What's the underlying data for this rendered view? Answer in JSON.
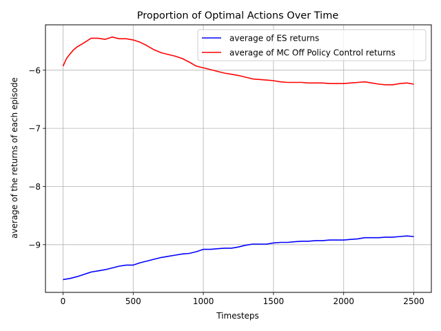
{
  "chart_data": {
    "type": "line",
    "title": "Proportion of Optimal Actions Over Time",
    "xlabel": "Timesteps",
    "ylabel": "average of the returns of each episode",
    "xlim": [
      -125,
      2625
    ],
    "ylim": [
      -9.82,
      -5.22
    ],
    "xticks": [
      0,
      500,
      1000,
      1500,
      2000,
      2500
    ],
    "yticks": [
      -9,
      -8,
      -7,
      -6
    ],
    "xtick_labels": [
      "0",
      "500",
      "1000",
      "1500",
      "2000",
      "2500"
    ],
    "ytick_labels": [
      "−9",
      "−8",
      "−7",
      "−6"
    ],
    "grid": true,
    "legend": "top-right",
    "series": [
      {
        "name": "average of ES returns",
        "color": "#0000ff",
        "x": [
          0,
          50,
          100,
          150,
          200,
          250,
          300,
          350,
          400,
          450,
          500,
          550,
          600,
          650,
          700,
          750,
          800,
          850,
          900,
          950,
          1000,
          1050,
          1100,
          1150,
          1200,
          1250,
          1300,
          1350,
          1400,
          1450,
          1500,
          1550,
          1600,
          1650,
          1700,
          1750,
          1800,
          1850,
          1900,
          1950,
          2000,
          2050,
          2100,
          2150,
          2200,
          2250,
          2300,
          2350,
          2400,
          2450,
          2500
        ],
        "y": [
          -9.6,
          -9.58,
          -9.55,
          -9.51,
          -9.47,
          -9.45,
          -9.43,
          -9.4,
          -9.37,
          -9.35,
          -9.35,
          -9.31,
          -9.28,
          -9.25,
          -9.22,
          -9.2,
          -9.18,
          -9.16,
          -9.15,
          -9.12,
          -9.08,
          -9.08,
          -9.07,
          -9.06,
          -9.06,
          -9.04,
          -9.01,
          -8.99,
          -8.99,
          -8.99,
          -8.97,
          -8.96,
          -8.96,
          -8.95,
          -8.94,
          -8.94,
          -8.93,
          -8.93,
          -8.92,
          -8.92,
          -8.92,
          -8.91,
          -8.9,
          -8.88,
          -8.88,
          -8.88,
          -8.87,
          -8.87,
          -8.86,
          -8.85,
          -8.86
        ]
      },
      {
        "name": "average of MC Off Policy Control returns",
        "color": "#ff0000",
        "x": [
          0,
          25,
          50,
          75,
          100,
          150,
          200,
          250,
          300,
          350,
          400,
          450,
          500,
          550,
          600,
          650,
          700,
          750,
          800,
          850,
          900,
          950,
          1000,
          1050,
          1100,
          1150,
          1200,
          1250,
          1300,
          1350,
          1400,
          1450,
          1500,
          1550,
          1600,
          1650,
          1700,
          1750,
          1800,
          1850,
          1900,
          1950,
          2000,
          2050,
          2100,
          2150,
          2200,
          2250,
          2300,
          2350,
          2400,
          2450,
          2500
        ],
        "y": [
          -5.93,
          -5.8,
          -5.72,
          -5.65,
          -5.6,
          -5.53,
          -5.45,
          -5.45,
          -5.47,
          -5.43,
          -5.46,
          -5.46,
          -5.48,
          -5.52,
          -5.58,
          -5.65,
          -5.7,
          -5.73,
          -5.76,
          -5.8,
          -5.86,
          -5.93,
          -5.96,
          -5.99,
          -6.02,
          -6.05,
          -6.07,
          -6.09,
          -6.12,
          -6.15,
          -6.16,
          -6.17,
          -6.18,
          -6.2,
          -6.21,
          -6.21,
          -6.21,
          -6.22,
          -6.22,
          -6.22,
          -6.23,
          -6.23,
          -6.23,
          -6.22,
          -6.21,
          -6.2,
          -6.22,
          -6.24,
          -6.25,
          -6.25,
          -6.23,
          -6.22,
          -6.24
        ]
      }
    ]
  }
}
